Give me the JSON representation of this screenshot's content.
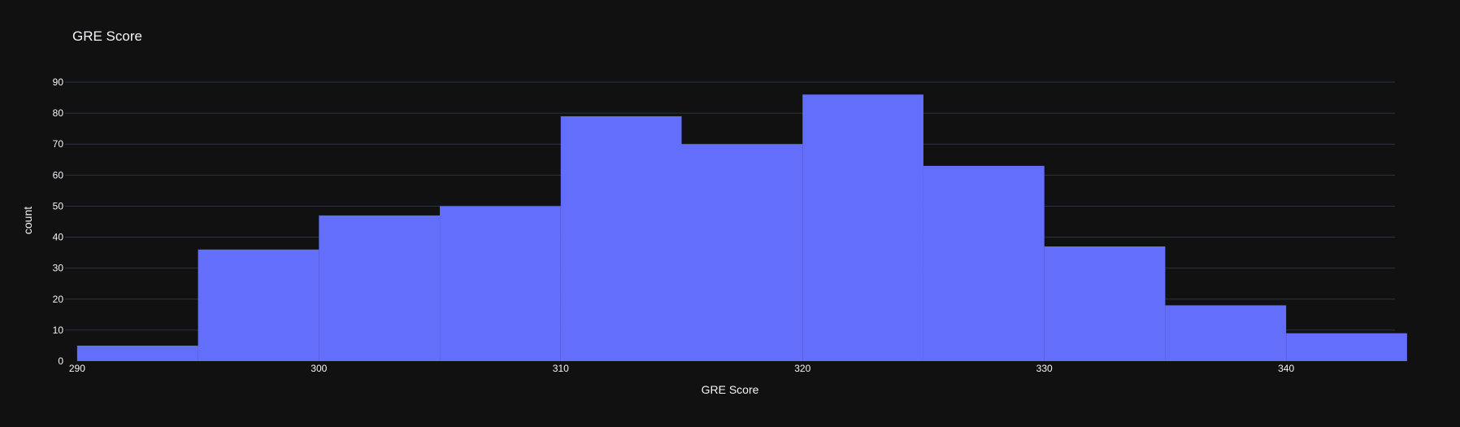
{
  "chart_data": {
    "type": "histogram",
    "title": "GRE Score",
    "xlabel": "GRE Score",
    "ylabel": "count",
    "bar_color": "#636efa",
    "background": "#111111",
    "grid_color": "#283442",
    "text_color": "#f2f5fa",
    "bin_size": 5,
    "bins": [
      {
        "start": 290,
        "end": 295,
        "count": 5
      },
      {
        "start": 295,
        "end": 300,
        "count": 36
      },
      {
        "start": 300,
        "end": 305,
        "count": 47
      },
      {
        "start": 305,
        "end": 310,
        "count": 50
      },
      {
        "start": 310,
        "end": 315,
        "count": 79
      },
      {
        "start": 315,
        "end": 320,
        "count": 70
      },
      {
        "start": 320,
        "end": 325,
        "count": 86
      },
      {
        "start": 325,
        "end": 330,
        "count": 63
      },
      {
        "start": 330,
        "end": 335,
        "count": 37
      },
      {
        "start": 335,
        "end": 340,
        "count": 18
      },
      {
        "start": 340,
        "end": 345,
        "count": 9
      }
    ],
    "xlim": [
      289.5,
      344.5
    ],
    "ylim": [
      0,
      90
    ],
    "x_ticks": [
      290,
      300,
      310,
      320,
      330,
      340
    ],
    "y_ticks": [
      0,
      10,
      20,
      30,
      40,
      50,
      60,
      70,
      80,
      90
    ],
    "grid": true
  }
}
